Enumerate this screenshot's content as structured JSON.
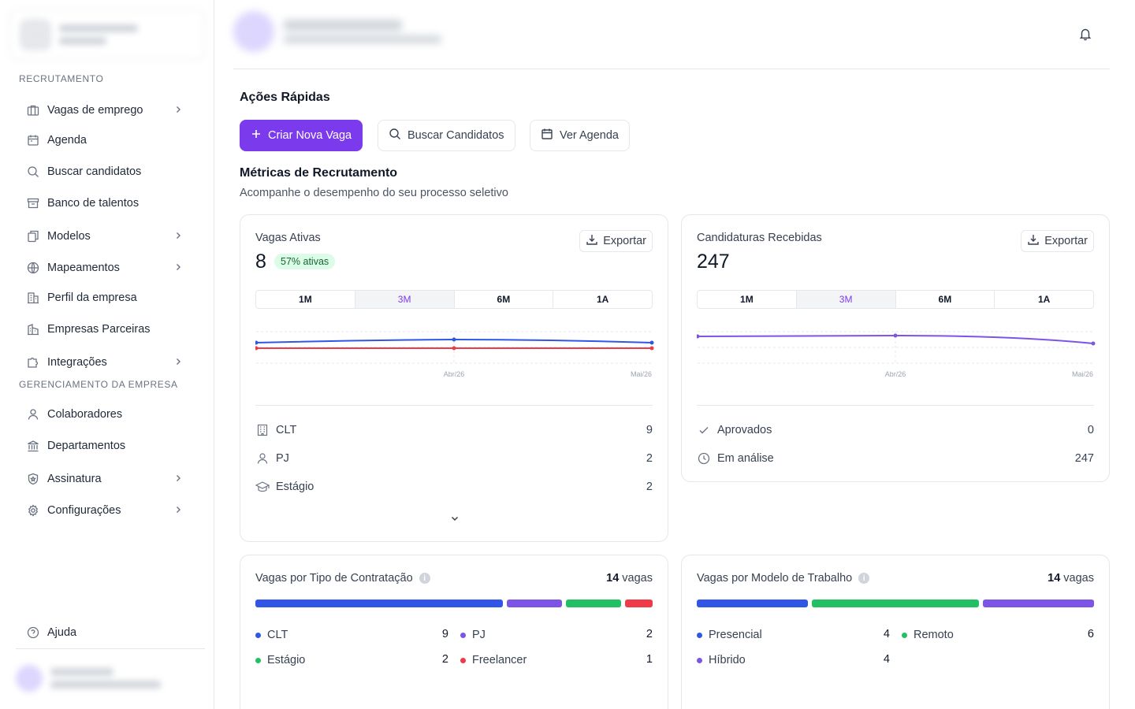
{
  "sidebar": {
    "section_recruitment": "RECRUTAMENTO",
    "items": [
      {
        "label": "Vagas de emprego",
        "icon": "briefcase-icon"
      },
      {
        "label": "Agenda",
        "icon": "calendar-icon"
      },
      {
        "label": "Buscar candidatos",
        "icon": "search-icon"
      },
      {
        "label": "Banco de talentos",
        "icon": "archive-icon"
      },
      {
        "label": "Modelos",
        "icon": "copy-icon"
      },
      {
        "label": "Mapeamentos",
        "icon": "globe-icon"
      },
      {
        "label": "Perfil da empresa",
        "icon": "building-icon"
      },
      {
        "label": "Empresas Parceiras",
        "icon": "buildings-icon"
      },
      {
        "label": "Integrações",
        "icon": "puzzle-icon"
      }
    ],
    "section_company": "GERENCIAMENTO DA EMPRESA",
    "company_items": [
      {
        "label": "Colaboradores",
        "icon": "user-icon"
      },
      {
        "label": "Departamentos",
        "icon": "landmark-icon"
      },
      {
        "label": "Assinatura",
        "icon": "shield-icon"
      },
      {
        "label": "Configurações",
        "icon": "gear-icon"
      }
    ],
    "help": "Ajuda"
  },
  "quick_actions": {
    "title": "Ações Rápidas",
    "create": "Criar Nova Vaga",
    "search": "Buscar Candidatos",
    "agenda": "Ver Agenda"
  },
  "metrics": {
    "title": "Métricas de Recrutamento",
    "subtitle": "Acompanhe o desempenho do seu processo seletivo"
  },
  "ranges": [
    "1M",
    "3M",
    "6M",
    "1A"
  ],
  "export_label": "Exportar",
  "vagas_ativas": {
    "label": "Vagas Ativas",
    "value": "8",
    "badge": "57% ativas",
    "x_labels": [
      "Abr/26",
      "Mai/26"
    ],
    "stats": [
      {
        "label": "CLT",
        "value": "9",
        "icon": "building-icon"
      },
      {
        "label": "PJ",
        "value": "2",
        "icon": "user-icon"
      },
      {
        "label": "Estágio",
        "value": "2",
        "icon": "graduation-cap-icon"
      }
    ]
  },
  "candidaturas": {
    "label": "Candidaturas Recebidas",
    "value": "247",
    "x_labels": [
      "Abr/26",
      "Mai/26"
    ],
    "stats": [
      {
        "label": "Aprovados",
        "value": "0",
        "icon": "check-icon"
      },
      {
        "label": "Em análise",
        "value": "247",
        "icon": "clock-icon"
      }
    ]
  },
  "tipo_contratacao": {
    "title": "Vagas por Tipo de Contratação",
    "total_num": "14",
    "total_unit": "vagas",
    "items": [
      {
        "label": "CLT",
        "value": "9",
        "color": "#3056e8"
      },
      {
        "label": "PJ",
        "value": "2",
        "color": "#7c55e6"
      },
      {
        "label": "Estágio",
        "value": "2",
        "color": "#22c063"
      },
      {
        "label": "Freelancer",
        "value": "1",
        "color": "#ef3a4a"
      }
    ]
  },
  "modelo_trabalho": {
    "title": "Vagas por Modelo de Trabalho",
    "total_num": "14",
    "total_unit": "vagas",
    "items": [
      {
        "label": "Presencial",
        "value": "4",
        "color": "#3056e8"
      },
      {
        "label": "Remoto",
        "value": "6",
        "color": "#22c063"
      },
      {
        "label": "Híbrido",
        "value": "4",
        "color": "#7c55e6"
      }
    ]
  }
}
